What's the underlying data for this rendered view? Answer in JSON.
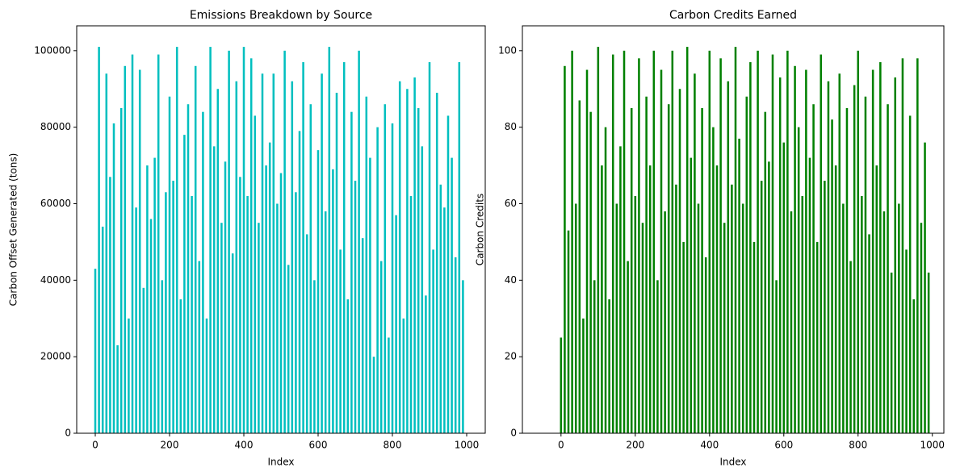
{
  "chart_data": [
    {
      "type": "bar",
      "title": "Emissions Breakdown by Source",
      "x_label": "Index",
      "y_label": "Carbon Offset Generated (tons)",
      "color": "#00bfbf",
      "x": [
        0,
        10,
        20,
        30,
        40,
        50,
        60,
        70,
        80,
        90,
        100,
        110,
        120,
        130,
        140,
        150,
        160,
        170,
        180,
        190,
        200,
        210,
        220,
        230,
        240,
        250,
        260,
        270,
        280,
        290,
        300,
        310,
        320,
        330,
        340,
        350,
        360,
        370,
        380,
        390,
        400,
        410,
        420,
        430,
        440,
        450,
        460,
        470,
        480,
        490,
        500,
        510,
        520,
        530,
        540,
        550,
        560,
        570,
        580,
        590,
        600,
        610,
        620,
        630,
        640,
        650,
        660,
        670,
        680,
        690,
        700,
        710,
        720,
        730,
        740,
        750,
        760,
        770,
        780,
        790,
        800,
        810,
        820,
        830,
        840,
        850,
        860,
        870,
        880,
        890,
        900,
        910,
        920,
        930,
        940,
        950,
        960,
        970,
        980,
        990
      ],
      "values": [
        43000,
        101000,
        54000,
        94000,
        67000,
        81000,
        23000,
        85000,
        96000,
        30000,
        99000,
        59000,
        95000,
        38000,
        70000,
        56000,
        72000,
        99000,
        40000,
        63000,
        88000,
        66000,
        101000,
        35000,
        78000,
        86000,
        62000,
        96000,
        45000,
        84000,
        30000,
        101000,
        75000,
        90000,
        55000,
        71000,
        100000,
        47000,
        92000,
        67000,
        101000,
        62000,
        98000,
        83000,
        55000,
        94000,
        70000,
        76000,
        94000,
        60000,
        68000,
        100000,
        44000,
        92000,
        63000,
        79000,
        97000,
        52000,
        86000,
        40000,
        74000,
        94000,
        58000,
        101000,
        69000,
        89000,
        48000,
        97000,
        35000,
        84000,
        66000,
        100000,
        51000,
        88000,
        72000,
        20000,
        80000,
        45000,
        86000,
        25000,
        81000,
        57000,
        92000,
        30000,
        90000,
        62000,
        93000,
        85000,
        75000,
        36000,
        97000,
        48000,
        89000,
        65000,
        59000,
        83000,
        72000,
        46000,
        97000,
        40000
      ],
      "xlim": [
        -50,
        1050
      ],
      "ylim": [
        0,
        106500
      ],
      "xticks": [
        0,
        200,
        400,
        600,
        800,
        1000
      ],
      "yticks": [
        0,
        20000,
        40000,
        60000,
        80000,
        100000
      ]
    },
    {
      "type": "bar",
      "title": "Carbon Credits Earned",
      "x_label": "Index",
      "y_label": "Carbon Credits",
      "color": "#008000",
      "x": [
        0,
        10,
        20,
        30,
        40,
        50,
        60,
        70,
        80,
        90,
        100,
        110,
        120,
        130,
        140,
        150,
        160,
        170,
        180,
        190,
        200,
        210,
        220,
        230,
        240,
        250,
        260,
        270,
        280,
        290,
        300,
        310,
        320,
        330,
        340,
        350,
        360,
        370,
        380,
        390,
        400,
        410,
        420,
        430,
        440,
        450,
        460,
        470,
        480,
        490,
        500,
        510,
        520,
        530,
        540,
        550,
        560,
        570,
        580,
        590,
        600,
        610,
        620,
        630,
        640,
        650,
        660,
        670,
        680,
        690,
        700,
        710,
        720,
        730,
        740,
        750,
        760,
        770,
        780,
        790,
        800,
        810,
        820,
        830,
        840,
        850,
        860,
        870,
        880,
        890,
        900,
        910,
        920,
        930,
        940,
        950,
        960,
        970,
        980,
        990
      ],
      "values": [
        25,
        96,
        53,
        100,
        60,
        87,
        30,
        95,
        84,
        40,
        101,
        70,
        80,
        35,
        99,
        60,
        75,
        100,
        45,
        85,
        62,
        98,
        55,
        88,
        70,
        100,
        40,
        95,
        58,
        86,
        100,
        65,
        90,
        50,
        101,
        72,
        94,
        60,
        85,
        46,
        100,
        80,
        70,
        98,
        55,
        92,
        65,
        101,
        77,
        60,
        88,
        97,
        50,
        100,
        66,
        84,
        71,
        99,
        40,
        93,
        76,
        100,
        58,
        96,
        80,
        62,
        95,
        72,
        86,
        50,
        99,
        66,
        92,
        82,
        70,
        94,
        60,
        85,
        45,
        91,
        100,
        62,
        88,
        52,
        95,
        70,
        97,
        58,
        86,
        42,
        93,
        60,
        98,
        48,
        83,
        35,
        98,
        55,
        76,
        42
      ],
      "xlim": [
        -104,
        1031
      ],
      "ylim": [
        0,
        106.5
      ],
      "xticks": [
        0,
        200,
        400,
        600,
        800,
        1000
      ],
      "yticks": [
        0,
        20,
        40,
        60,
        80,
        100
      ]
    }
  ]
}
